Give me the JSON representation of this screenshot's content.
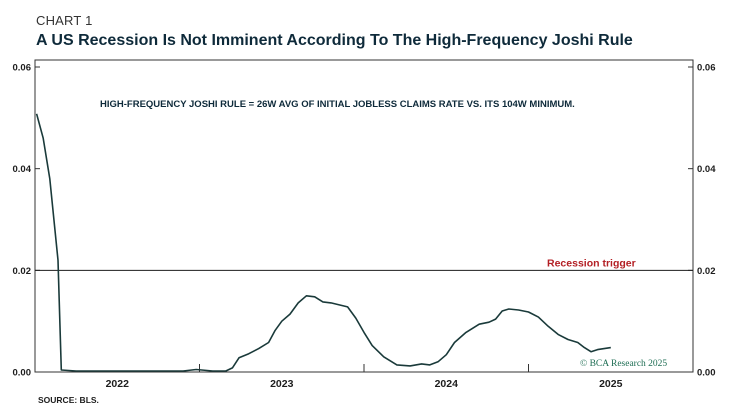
{
  "header": {
    "label": "CHART 1",
    "title": "A US Recession Is Not Imminent According To The High-Frequency Joshi Rule"
  },
  "annotation": "HIGH-FREQUENCY JOSHI RULE = 26W AVG OF INITIAL JOBLESS CLAIMS RATE VS. ITS 104W MINIMUM.",
  "watermark": "© BCA Research 2025",
  "source": "SOURCE: BLS.",
  "colors": {
    "series": "#1a3a3a",
    "trigger_text": "#b31f24",
    "title": "#0e2a3a"
  },
  "chart_data": {
    "type": "line",
    "title": "A US Recession Is Not Imminent According To The High-Frequency Joshi Rule",
    "xlabel": "",
    "ylabel": "",
    "xlim": [
      2021.5,
      2025.5
    ],
    "ylim": [
      0,
      0.06
    ],
    "x_ticks": [
      2022,
      2023,
      2024,
      2025
    ],
    "y_ticks": [
      0.0,
      0.02,
      0.04,
      0.06
    ],
    "y_tick_labels": [
      "0.00",
      "0.02",
      "0.04",
      "0.06"
    ],
    "right_axis_mirrored": true,
    "grid": false,
    "threshold": {
      "label": "Recession trigger",
      "value": 0.02
    },
    "series": [
      {
        "values": [
          [
            2021.51,
            0.0508
          ],
          [
            2021.55,
            0.046
          ],
          [
            2021.59,
            0.038
          ],
          [
            2021.64,
            0.022
          ],
          [
            2021.66,
            0.0004
          ],
          [
            2021.75,
            0.0002
          ],
          [
            2022.0,
            0.0002
          ],
          [
            2022.25,
            0.0002
          ],
          [
            2022.4,
            0.0002
          ],
          [
            2022.48,
            0.0005
          ],
          [
            2022.58,
            0.0002
          ],
          [
            2022.66,
            0.0002
          ],
          [
            2022.7,
            0.0008
          ],
          [
            2022.74,
            0.0028
          ],
          [
            2022.8,
            0.0036
          ],
          [
            2022.86,
            0.0046
          ],
          [
            2022.92,
            0.0058
          ],
          [
            2022.96,
            0.0082
          ],
          [
            2023.0,
            0.01
          ],
          [
            2023.05,
            0.0114
          ],
          [
            2023.1,
            0.0136
          ],
          [
            2023.15,
            0.015
          ],
          [
            2023.2,
            0.0148
          ],
          [
            2023.25,
            0.0138
          ],
          [
            2023.3,
            0.0136
          ],
          [
            2023.35,
            0.0132
          ],
          [
            2023.4,
            0.0128
          ],
          [
            2023.45,
            0.0106
          ],
          [
            2023.5,
            0.0078
          ],
          [
            2023.55,
            0.0052
          ],
          [
            2023.62,
            0.003
          ],
          [
            2023.7,
            0.0014
          ],
          [
            2023.78,
            0.0012
          ],
          [
            2023.85,
            0.0016
          ],
          [
            2023.9,
            0.0014
          ],
          [
            2023.95,
            0.002
          ],
          [
            2024.0,
            0.0034
          ],
          [
            2024.05,
            0.0058
          ],
          [
            2024.12,
            0.0078
          ],
          [
            2024.2,
            0.0094
          ],
          [
            2024.26,
            0.0098
          ],
          [
            2024.3,
            0.0104
          ],
          [
            2024.34,
            0.012
          ],
          [
            2024.38,
            0.0124
          ],
          [
            2024.44,
            0.0122
          ],
          [
            2024.5,
            0.0118
          ],
          [
            2024.56,
            0.0108
          ],
          [
            2024.62,
            0.009
          ],
          [
            2024.68,
            0.0074
          ],
          [
            2024.74,
            0.0064
          ],
          [
            2024.8,
            0.0058
          ],
          [
            2024.84,
            0.0048
          ],
          [
            2024.88,
            0.004
          ],
          [
            2024.92,
            0.0044
          ],
          [
            2024.96,
            0.0046
          ],
          [
            2025.0,
            0.0048
          ]
        ]
      }
    ]
  }
}
